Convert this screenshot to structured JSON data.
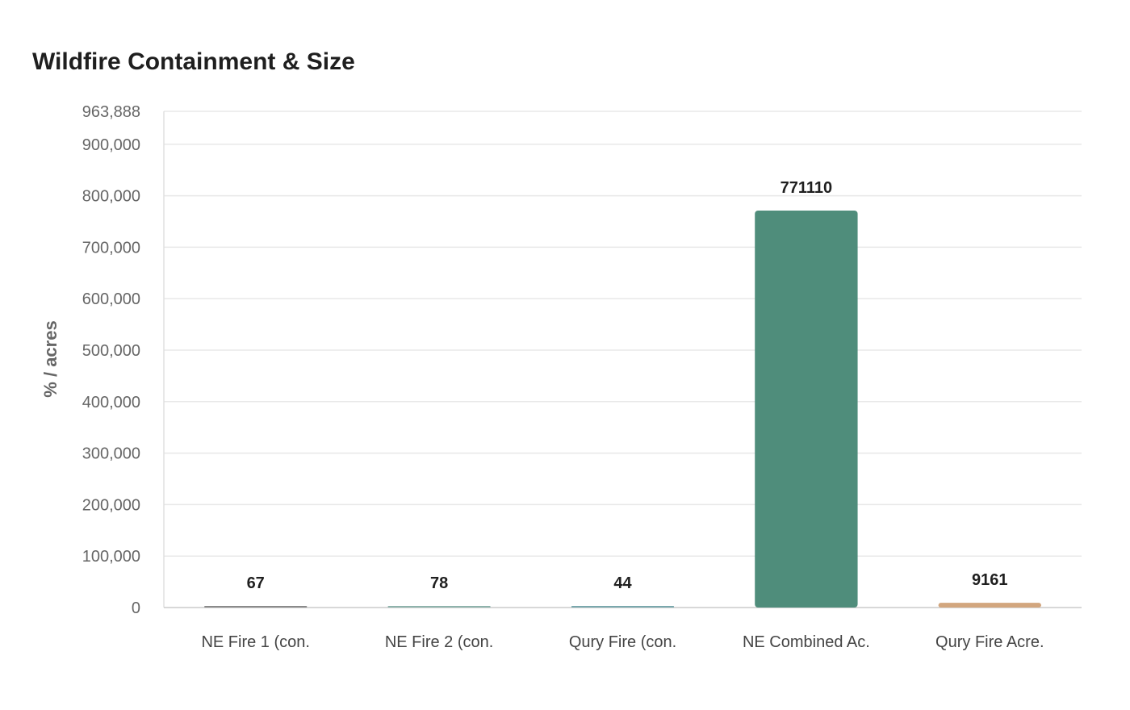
{
  "title": "Wildfire Containment & Size",
  "chart_data": {
    "type": "bar",
    "title": "Wildfire Containment & Size",
    "xlabel": "",
    "ylabel": "% / acres",
    "categories": [
      "NE Fire 1 (con.",
      "NE Fire 2 (con.",
      "Qury Fire (con.",
      "NE Combined Ac.",
      "Qury Fire Acre."
    ],
    "values": [
      67,
      78,
      44,
      771110,
      9161
    ],
    "data_labels": [
      "67",
      "78",
      "44",
      "771110",
      "9161"
    ],
    "colors": [
      "#8a8a8a",
      "#8fb3ac",
      "#7aa8ad",
      "#4f8d7b",
      "#d2a67e"
    ],
    "ylim": [
      0,
      963888
    ],
    "yticks": [
      0,
      100000,
      200000,
      300000,
      400000,
      500000,
      600000,
      700000,
      800000,
      900000,
      963888
    ],
    "ytick_labels": [
      "0",
      "100,000",
      "200,000",
      "300,000",
      "400,000",
      "500,000",
      "600,000",
      "700,000",
      "800,000",
      "900,000",
      "963,888"
    ],
    "grid": true,
    "legend": "none"
  }
}
